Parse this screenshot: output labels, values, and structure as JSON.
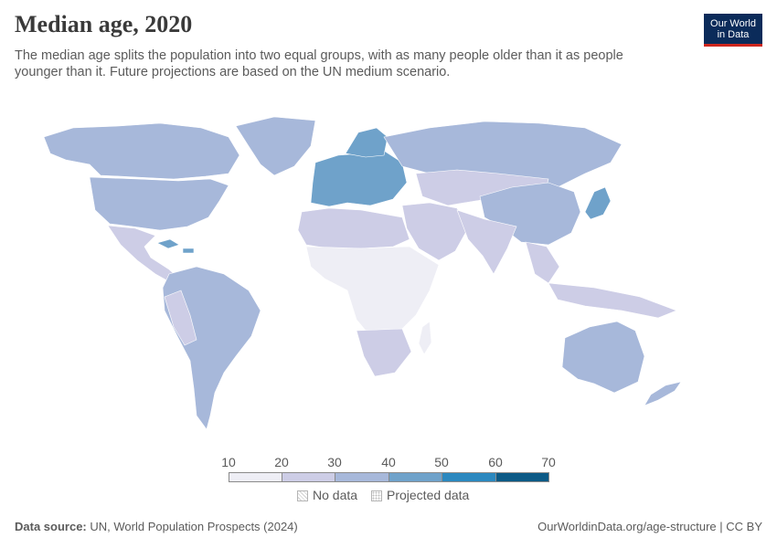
{
  "header": {
    "title": "Median age, 2020",
    "subtitle": "The median age splits the population into two equal groups, with as many people older than it as people younger than it. Future projections are based on the UN medium scenario."
  },
  "logo": {
    "line1": "Our World",
    "line2": "in Data"
  },
  "legend": {
    "ticks": [
      "10",
      "20",
      "30",
      "40",
      "50",
      "60",
      "70"
    ],
    "bins": [
      {
        "from": 10,
        "to": 20,
        "color": "#eeeef5"
      },
      {
        "from": 20,
        "to": 30,
        "color": "#cdcde6"
      },
      {
        "from": 30,
        "to": 40,
        "color": "#a7b8da"
      },
      {
        "from": 40,
        "to": 50,
        "color": "#6fa2ca"
      },
      {
        "from": 50,
        "to": 60,
        "color": "#2b88bf"
      },
      {
        "from": 60,
        "to": 70,
        "color": "#0c5a86"
      }
    ],
    "no_data_label": "No data",
    "projected_label": "Projected data"
  },
  "map": {
    "regions": [
      {
        "name": "North America",
        "bin": "30-40"
      },
      {
        "name": "Greenland",
        "bin": "30-40"
      },
      {
        "name": "Mexico and Central America",
        "bin": "20-30"
      },
      {
        "name": "Caribbean",
        "bin": "40-50"
      },
      {
        "name": "South America",
        "bin": "30-40"
      },
      {
        "name": "Western and Southern Europe",
        "bin": "40-50"
      },
      {
        "name": "Russia",
        "bin": "30-40"
      },
      {
        "name": "North Africa",
        "bin": "20-30"
      },
      {
        "name": "Sub-Saharan Africa",
        "bin": "10-20"
      },
      {
        "name": "Southern Africa",
        "bin": "20-30"
      },
      {
        "name": "Middle East",
        "bin": "20-30"
      },
      {
        "name": "Central and South Asia",
        "bin": "20-30"
      },
      {
        "name": "China",
        "bin": "30-40"
      },
      {
        "name": "Japan",
        "bin": "40-50"
      },
      {
        "name": "Southeast Asia",
        "bin": "20-30"
      },
      {
        "name": "Australia",
        "bin": "30-40"
      },
      {
        "name": "New Zealand",
        "bin": "30-40"
      }
    ]
  },
  "footer": {
    "source_label": "Data source:",
    "source_text": "UN, World Population Prospects (2024)",
    "url": "OurWorldinData.org/age-structure | CC BY"
  }
}
